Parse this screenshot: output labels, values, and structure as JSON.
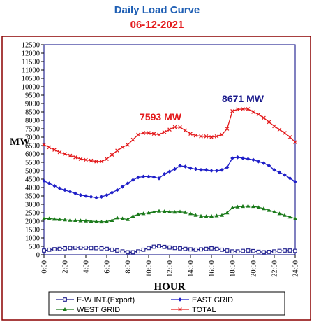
{
  "title_text": "Daily Load Curve",
  "date_text": "06-12-2021",
  "colors": {
    "title": "#1f5fb4",
    "date": "#e31a1c",
    "frame": "#8b0000",
    "plot_border": "#000080",
    "total": "#e31a1c",
    "west": "#1a7a1a",
    "east": "#1f1fc8",
    "ew": "#1a1a8c"
  },
  "chart_data": {
    "type": "line",
    "title": "Daily Load Curve",
    "subtitle": "06-12-2021",
    "xlabel": "HOUR",
    "ylabel": "MW",
    "xlim": [
      0,
      24
    ],
    "ylim": [
      0,
      12500
    ],
    "xticks": [
      "0:00",
      "2:00",
      "4:00",
      "6:00",
      "8:00",
      "10:00",
      "12:00",
      "14:00",
      "16:00",
      "18:00",
      "20:00",
      "22:00",
      "24:00"
    ],
    "yticks": [
      "0",
      "500",
      "1000",
      "1500",
      "2000",
      "2500",
      "3000",
      "3500",
      "4000",
      "4500",
      "5000",
      "5500",
      "6000",
      "6500",
      "7000",
      "7500",
      "8000",
      "8500",
      "9000",
      "9500",
      "10000",
      "10500",
      "11000",
      "11500",
      "12000",
      "12500"
    ],
    "x": [
      0,
      0.5,
      1,
      1.5,
      2,
      2.5,
      3,
      3.5,
      4,
      4.5,
      5,
      5.5,
      6,
      6.5,
      7,
      7.5,
      8,
      8.5,
      9,
      9.5,
      10,
      10.5,
      11,
      11.5,
      12,
      12.5,
      13,
      13.5,
      14,
      14.5,
      15,
      15.5,
      16,
      16.5,
      17,
      17.5,
      18,
      18.5,
      19,
      19.5,
      20,
      20.5,
      21,
      21.5,
      22,
      22.5,
      23,
      23.5,
      24
    ],
    "series": [
      {
        "name": "E-W INT.(Export)",
        "marker": "square-open",
        "values": [
          250,
          300,
          330,
          350,
          380,
          400,
          420,
          420,
          420,
          400,
          390,
          380,
          350,
          300,
          250,
          200,
          150,
          150,
          200,
          300,
          400,
          480,
          500,
          470,
          430,
          400,
          380,
          350,
          320,
          300,
          320,
          350,
          380,
          350,
          300,
          250,
          200,
          200,
          230,
          250,
          220,
          180,
          150,
          170,
          200,
          230,
          250,
          250,
          230
        ]
      },
      {
        "name": "EAST GRID",
        "marker": "diamond",
        "values": [
          4400,
          4250,
          4100,
          3950,
          3850,
          3750,
          3650,
          3550,
          3500,
          3450,
          3400,
          3450,
          3550,
          3700,
          3850,
          4050,
          4250,
          4450,
          4600,
          4650,
          4650,
          4620,
          4550,
          4800,
          4950,
          5100,
          5300,
          5250,
          5150,
          5100,
          5050,
          5050,
          5000,
          5000,
          5050,
          5200,
          5750,
          5800,
          5750,
          5700,
          5650,
          5550,
          5450,
          5300,
          5050,
          4900,
          4750,
          4550,
          4350
        ]
      },
      {
        "name": "WEST GRID",
        "marker": "triangle",
        "values": [
          2150,
          2150,
          2120,
          2100,
          2080,
          2060,
          2050,
          2030,
          2020,
          2000,
          1980,
          1960,
          1980,
          2050,
          2200,
          2150,
          2100,
          2300,
          2400,
          2450,
          2500,
          2550,
          2600,
          2580,
          2550,
          2540,
          2560,
          2520,
          2450,
          2350,
          2300,
          2280,
          2300,
          2320,
          2350,
          2500,
          2800,
          2850,
          2880,
          2900,
          2880,
          2820,
          2750,
          2650,
          2550,
          2450,
          2350,
          2250,
          2150
        ]
      },
      {
        "name": "TOTAL",
        "marker": "x",
        "values": [
          6550,
          6400,
          6250,
          6100,
          6000,
          5900,
          5800,
          5700,
          5650,
          5600,
          5550,
          5550,
          5700,
          5950,
          6200,
          6400,
          6550,
          6850,
          7150,
          7250,
          7250,
          7200,
          7150,
          7300,
          7450,
          7600,
          7593,
          7400,
          7200,
          7100,
          7050,
          7050,
          7000,
          7050,
          7150,
          7500,
          8550,
          8650,
          8671,
          8671,
          8500,
          8350,
          8150,
          7900,
          7650,
          7450,
          7250,
          7000,
          6700
        ]
      }
    ],
    "annotations": [
      {
        "text": "7593 MW",
        "x": 13,
        "y": 7593
      },
      {
        "text": "8671 MW",
        "x": 19,
        "y": 8671
      }
    ],
    "legend_position": "bottom"
  }
}
